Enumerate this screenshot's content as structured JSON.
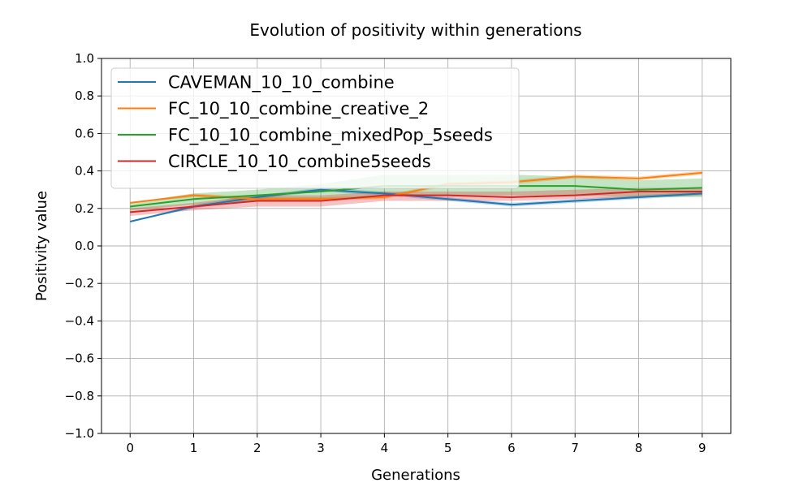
{
  "chart_data": {
    "type": "line",
    "title": "Evolution of positivity within generations",
    "xlabel": "Generations",
    "ylabel": "Positivity value",
    "x": [
      0,
      1,
      2,
      3,
      4,
      5,
      6,
      7,
      8,
      9
    ],
    "xlim": [
      -0.45,
      9.45
    ],
    "ylim": [
      -1.0,
      1.0
    ],
    "xticks": [
      "0",
      "1",
      "2",
      "3",
      "4",
      "5",
      "6",
      "7",
      "8",
      "9"
    ],
    "yticks": [
      "1.0",
      "0.8",
      "0.6",
      "0.4",
      "0.2",
      "0.0",
      "−0.2",
      "−0.4",
      "−0.6",
      "−0.8",
      "−1.0"
    ],
    "ytick_values": [
      1.0,
      0.8,
      0.6,
      0.4,
      0.2,
      0.0,
      -0.2,
      -0.4,
      -0.6,
      -0.8,
      -1.0
    ],
    "grid": true,
    "legend_position": "top-left",
    "series": [
      {
        "name": "CAVEMAN_10_10_combine",
        "color": "#1f77b4",
        "values": [
          0.13,
          0.21,
          0.26,
          0.3,
          0.28,
          0.25,
          0.22,
          0.24,
          0.26,
          0.28
        ],
        "band_low": [
          0.13,
          0.2,
          0.25,
          0.29,
          0.27,
          0.24,
          0.21,
          0.23,
          0.25,
          0.27
        ],
        "band_high": [
          0.13,
          0.22,
          0.27,
          0.31,
          0.29,
          0.26,
          0.23,
          0.25,
          0.27,
          0.29
        ]
      },
      {
        "name": "FC_10_10_combine_creative_2",
        "color": "#ff7f0e",
        "values": [
          0.23,
          0.27,
          0.25,
          0.25,
          0.26,
          0.33,
          0.34,
          0.37,
          0.36,
          0.39
        ],
        "band_low": [
          0.23,
          0.26,
          0.24,
          0.24,
          0.25,
          0.32,
          0.33,
          0.36,
          0.35,
          0.38
        ],
        "band_high": [
          0.23,
          0.28,
          0.26,
          0.26,
          0.27,
          0.34,
          0.35,
          0.38,
          0.37,
          0.4
        ]
      },
      {
        "name": "FC_10_10_combine_mixedPop_5seeds",
        "color": "#2ca02c",
        "values": [
          0.21,
          0.25,
          0.27,
          0.29,
          0.32,
          0.32,
          0.32,
          0.32,
          0.3,
          0.31
        ],
        "band_low": [
          0.19,
          0.22,
          0.24,
          0.25,
          0.27,
          0.27,
          0.27,
          0.27,
          0.26,
          0.26
        ],
        "band_high": [
          0.23,
          0.28,
          0.3,
          0.33,
          0.38,
          0.38,
          0.38,
          0.37,
          0.35,
          0.36
        ]
      },
      {
        "name": "CIRCLE_10_10_combine5seeds",
        "color": "#d62728",
        "values": [
          0.18,
          0.21,
          0.24,
          0.24,
          0.27,
          0.27,
          0.26,
          0.27,
          0.29,
          0.29
        ],
        "band_low": [
          0.16,
          0.19,
          0.21,
          0.21,
          0.24,
          0.24,
          0.24,
          0.25,
          0.26,
          0.27
        ],
        "band_high": [
          0.2,
          0.23,
          0.27,
          0.27,
          0.29,
          0.29,
          0.29,
          0.3,
          0.31,
          0.31
        ]
      }
    ]
  }
}
